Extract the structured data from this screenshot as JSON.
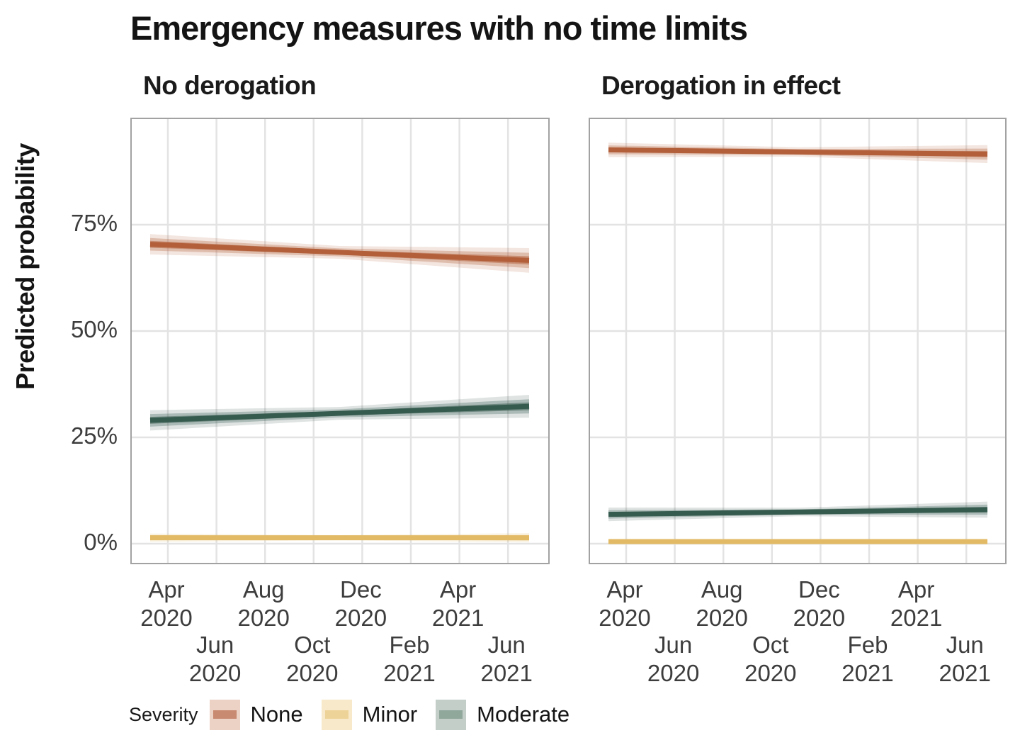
{
  "chart_data": {
    "type": "line",
    "title": "Emergency measures with no time limits",
    "ylabel": "Predicted probability",
    "xlabel": "",
    "ylim": [
      0,
      100
    ],
    "grid": true,
    "y_ticks": [
      {
        "label": "0%",
        "value": 0
      },
      {
        "label": "25%",
        "value": 25
      },
      {
        "label": "50%",
        "value": 50
      },
      {
        "label": "75%",
        "value": 75
      }
    ],
    "x_ticks": [
      {
        "month": "Apr",
        "year": "2020",
        "row": 1
      },
      {
        "month": "Jun",
        "year": "2020",
        "row": 2
      },
      {
        "month": "Aug",
        "year": "2020",
        "row": 1
      },
      {
        "month": "Oct",
        "year": "2020",
        "row": 2
      },
      {
        "month": "Dec",
        "year": "2020",
        "row": 1
      },
      {
        "month": "Feb",
        "year": "2021",
        "row": 2
      },
      {
        "month": "Apr",
        "year": "2021",
        "row": 1
      },
      {
        "month": "Jun",
        "year": "2021",
        "row": 2
      }
    ],
    "x_range": [
      "Mid-Mar 2020",
      "Early Jul 2021"
    ],
    "facets": [
      {
        "label": "No derogation",
        "series": [
          {
            "name": "None",
            "color": "#b25f3a",
            "start": 70.4,
            "end": 66.6,
            "ci_start": 2.4,
            "ci_mid": 1.5,
            "ci_end": 2.9
          },
          {
            "name": "Minor",
            "color": "#e2b964",
            "start": 1.4,
            "end": 1.4,
            "ci_start": 1.0,
            "ci_mid": 0.6,
            "ci_end": 1.1
          },
          {
            "name": "Moderate",
            "color": "#355a4e",
            "start": 29.0,
            "end": 32.3,
            "ci_start": 2.4,
            "ci_mid": 1.5,
            "ci_end": 2.7
          }
        ]
      },
      {
        "label": "Derogation in effect",
        "series": [
          {
            "name": "None",
            "color": "#b25f3a",
            "start": 92.6,
            "end": 91.6,
            "ci_start": 1.7,
            "ci_mid": 1.1,
            "ci_end": 2.1
          },
          {
            "name": "Minor",
            "color": "#e2b964",
            "start": 0.5,
            "end": 0.5,
            "ci_start": 0.5,
            "ci_mid": 0.35,
            "ci_end": 0.55
          },
          {
            "name": "Moderate",
            "color": "#355a4e",
            "start": 6.9,
            "end": 8.0,
            "ci_start": 1.6,
            "ci_mid": 1.0,
            "ci_end": 1.9
          }
        ]
      }
    ],
    "legend_position": "bottom-left"
  },
  "legend": {
    "title": "Severity",
    "items": [
      {
        "label": "None",
        "fill": "#ecd1c5",
        "line": "#c98a72"
      },
      {
        "label": "Minor",
        "fill": "#f8e9ca",
        "line": "#eed398"
      },
      {
        "label": "Moderate",
        "fill": "#c3cec8",
        "line": "#90a79c"
      }
    ]
  },
  "colors": {
    "grid": "#e3e3e3",
    "panel_border": "#a2a2a2",
    "tick_text": "#3d3d3d",
    "title_text": "#141414"
  }
}
